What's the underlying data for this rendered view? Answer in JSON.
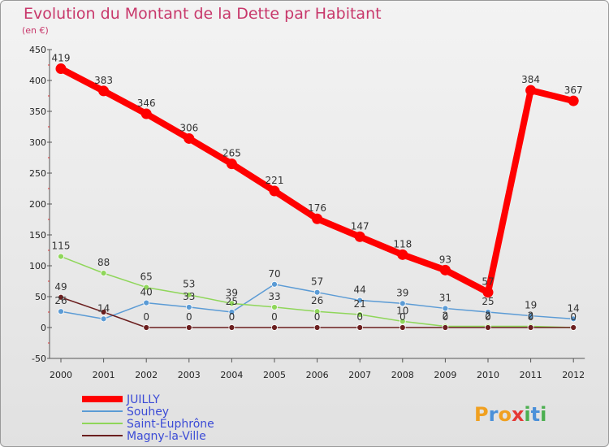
{
  "chart_data": {
    "type": "line",
    "title": "Evolution du Montant de la Dette par Habitant",
    "subtitle": "(en €)",
    "xlabel": "",
    "ylabel": "",
    "x": [
      "2000",
      "2001",
      "2002",
      "2003",
      "2004",
      "2005",
      "2006",
      "2007",
      "2008",
      "2009",
      "2010",
      "2011",
      "2012"
    ],
    "ylim": [
      -50,
      450
    ],
    "yticks": [
      -50,
      0,
      50,
      100,
      150,
      200,
      250,
      300,
      350,
      400,
      450
    ],
    "grid": false,
    "legend_position": "bottom-left",
    "series": [
      {
        "name": "Souhey",
        "color": "#5b9bd5",
        "values": [
          26,
          14,
          40,
          33,
          25,
          70,
          57,
          44,
          39,
          31,
          25,
          19,
          14
        ],
        "labels": [
          "26",
          "14",
          "40",
          "33",
          "25",
          "70",
          "57",
          "44",
          "39",
          "31",
          "25",
          "19",
          "14"
        ]
      },
      {
        "name": "Saint-Euphrône",
        "color": "#8fd65a",
        "values": [
          115,
          88,
          65,
          53,
          39,
          33,
          26,
          21,
          10,
          2,
          2,
          2,
          0
        ],
        "labels": [
          "115",
          "88",
          "65",
          "53",
          "39",
          "33",
          "26",
          "21",
          "10",
          "2",
          "2",
          "2",
          ""
        ]
      },
      {
        "name": "Magny-la-Ville",
        "color": "#6b1f1f",
        "values": [
          49,
          25,
          0,
          0,
          0,
          0,
          0,
          0,
          0,
          0,
          0,
          0,
          0
        ],
        "labels": [
          "49",
          "",
          "0",
          "0",
          "0",
          "0",
          "0",
          "0",
          "0",
          "0",
          "0",
          "0",
          "0"
        ]
      },
      {
        "name": "JUILLY",
        "color": "#ff0000",
        "values": [
          419,
          383,
          346,
          306,
          265,
          221,
          176,
          147,
          118,
          93,
          57,
          384,
          367
        ],
        "labels": [
          "419",
          "383",
          "346",
          "306",
          "265",
          "221",
          "176",
          "147",
          "118",
          "93",
          "57",
          "384",
          "367"
        ]
      }
    ],
    "legend_order": [
      "JUILLY",
      "Souhey",
      "Saint-Euphrône",
      "Magny-la-Ville"
    ]
  },
  "brand": {
    "letters": [
      "P",
      "r",
      "o",
      "x",
      "i",
      "t",
      "i"
    ],
    "colors": [
      "#f0a020",
      "#4a90d9",
      "#f0a020",
      "#e53935",
      "#4caf50",
      "#4a90d9",
      "#4caf50"
    ]
  }
}
